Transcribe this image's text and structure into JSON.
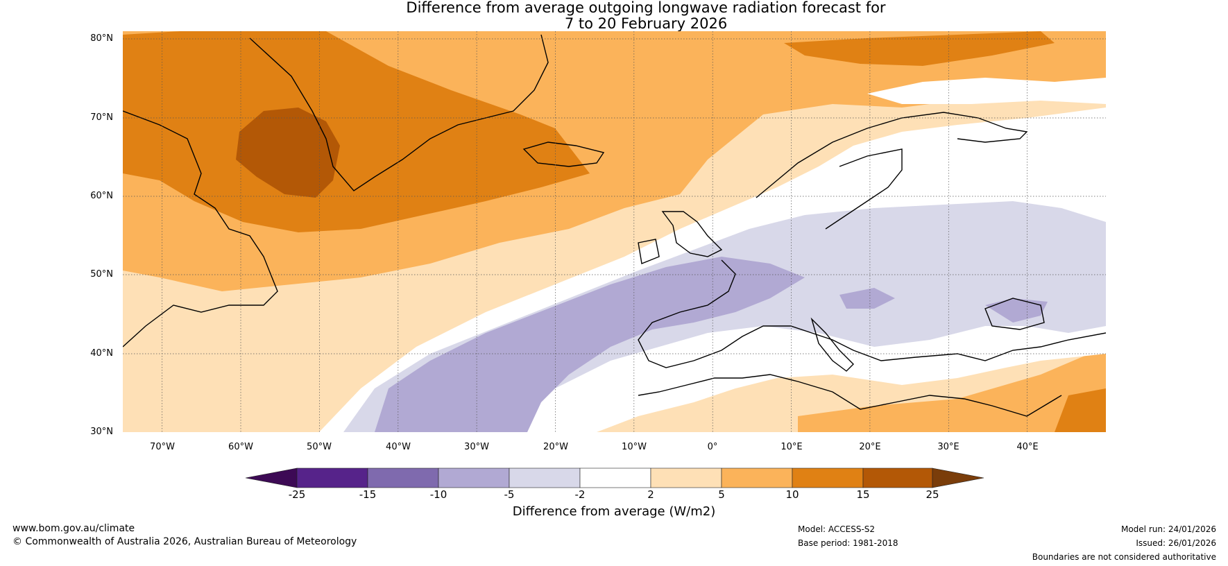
{
  "title": {
    "line1": "Difference from average outgoing longwave radiation forecast for",
    "line2": "7 to 20 February 2026"
  },
  "map": {
    "lat_labels": [
      "80°N",
      "70°N",
      "60°N",
      "50°N",
      "40°N",
      "30°N"
    ],
    "lon_labels": [
      "70°W",
      "60°W",
      "50°W",
      "40°W",
      "30°W",
      "20°W",
      "10°W",
      "0°",
      "10°E",
      "20°E",
      "30°E",
      "40°E"
    ],
    "extent": {
      "lon_min": -75,
      "lon_max": 50,
      "lat_min": 30,
      "lat_max": 81
    }
  },
  "colorbar": {
    "title": "Difference from average (W/m2)",
    "ticks": [
      "-25",
      "-15",
      "-10",
      "-5",
      "-2",
      "2",
      "5",
      "10",
      "15",
      "25"
    ],
    "colors": [
      "#3d0a55",
      "#56238a",
      "#7f6aae",
      "#b1a9d3",
      "#d8d8e9",
      "#ffffff",
      "#fee0b6",
      "#fbb35a",
      "#e08114",
      "#b35806",
      "#7a3d0a"
    ]
  },
  "footer": {
    "website": "www.bom.gov.au/climate",
    "copyright": "© Commonwealth of Australia 2026, Australian Bureau of Meteorology",
    "model": "Model: ACCESS-S2",
    "base_period": "Base period: 1981-2018",
    "model_run": "Model run: 24/01/2026",
    "issued": "Issued: 26/01/2026",
    "disclaimer": "Boundaries are not considered authoritative"
  }
}
